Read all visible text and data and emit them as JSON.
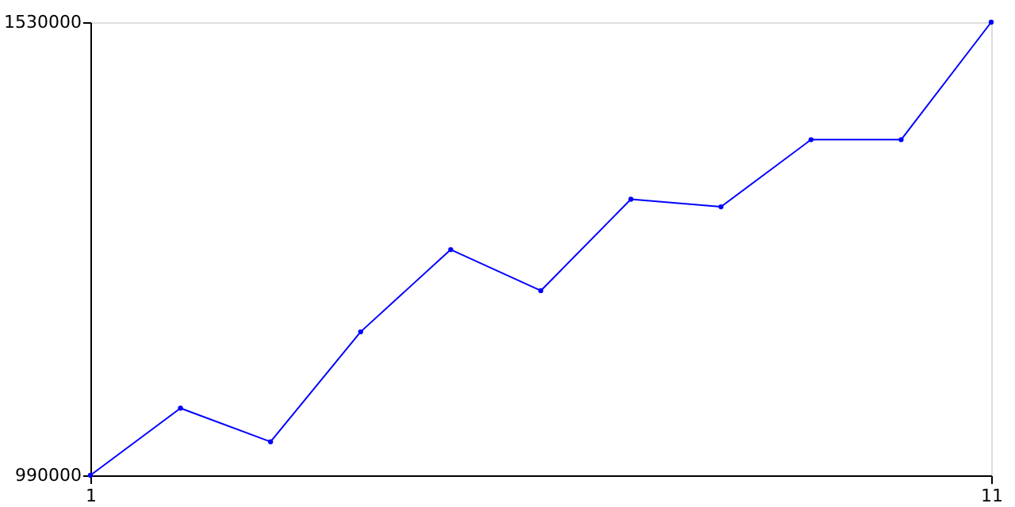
{
  "chart_data": {
    "type": "line",
    "x": [
      1,
      2,
      3,
      4,
      5,
      6,
      7,
      8,
      9,
      10,
      11
    ],
    "series": [
      {
        "color": "#0000ff",
        "values": [
          990000,
          1070000,
          1030000,
          1161000,
          1259000,
          1210000,
          1319000,
          1310000,
          1390000,
          1390000,
          1530000
        ]
      }
    ],
    "xlim": [
      1,
      11
    ],
    "xticks": [
      1,
      11
    ],
    "ylim": [
      990000,
      1530000
    ],
    "yticks": [
      990000,
      1530000
    ],
    "marker": "circle",
    "line_style": "solid",
    "legend": false
  }
}
